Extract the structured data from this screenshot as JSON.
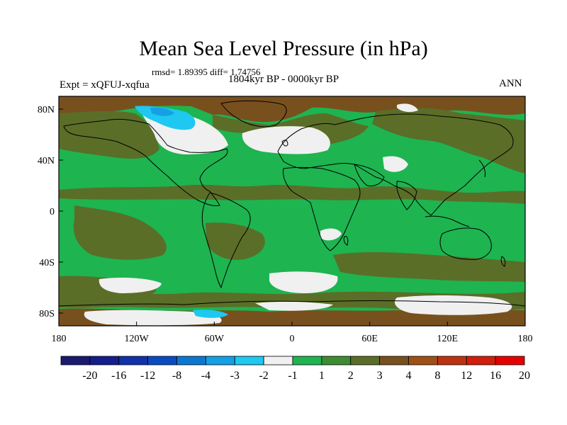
{
  "title": "Mean Sea Level Pressure (in hPa)",
  "stats_line": "rmsd= 1.89395 diff= 1.74756",
  "period": "1804kyr BP - 0000kyr BP",
  "experiment": "Expt = xQFUJ-xqfua",
  "season": "ANN",
  "lat_labels": [
    "80N",
    "40N",
    "0",
    "40S",
    "80S"
  ],
  "lon_labels": [
    "180",
    "120W",
    "60W",
    "0",
    "60E",
    "120E",
    "180"
  ],
  "colorbar": {
    "colors": [
      "#1a1a6e",
      "#141e8c",
      "#0f32aa",
      "#0a4bc3",
      "#0a78d2",
      "#14a0e6",
      "#1ec8f0",
      "#f0f0f0",
      "#1eb450",
      "#3c8c32",
      "#5a6e28",
      "#78501e",
      "#a05014",
      "#be320f",
      "#d21e0a",
      "#e60000"
    ],
    "labels": [
      "-20",
      "-16",
      "-12",
      "-8",
      "-4",
      "-3",
      "-2",
      "-1",
      "1",
      "2",
      "3",
      "4",
      "8",
      "12",
      "16",
      "20"
    ]
  },
  "map_colors": {
    "ocean": "#1eb450",
    "olive": "#5a6e28",
    "brown": "#78501e",
    "white": "#f0f0f0",
    "cyan": "#1ec8f0",
    "blue": "#14a0e6"
  }
}
